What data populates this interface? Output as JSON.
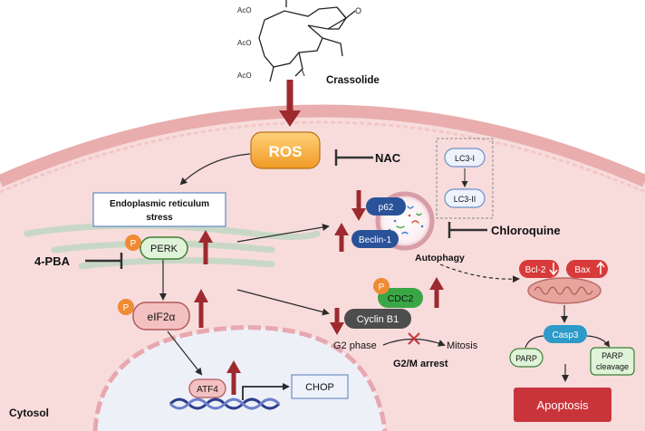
{
  "colors": {
    "cell_fill": "#f8dcdc",
    "membrane": "#e6a9a9",
    "nucleus_fill": "#eef0f8",
    "dark_red": "#9e2a2f",
    "ros_fill": "#f4a93a",
    "perk_fill": "#dff3d8",
    "eif2a_fill": "#f3c1c1",
    "cdc2_fill": "#3aa646",
    "cyclin_fill": "#4d4d4d",
    "bcl2_fill": "#d83a3a",
    "casp3_fill": "#2d9ac8",
    "apoptosis_fill": "#c9343b",
    "p_badge": "#f08a34",
    "blue_pill": "#2a5298"
  },
  "compound": {
    "name": "Crassolide",
    "acetyl_labels": [
      "AcO",
      "AcO",
      "AcO"
    ]
  },
  "ros": {
    "label": "ROS",
    "inhibitor": "NAC"
  },
  "er_stress": {
    "label_line1": "Endoplasmic reticulum",
    "label_line2": "stress"
  },
  "upr": {
    "perk": "PERK",
    "phospho": "P",
    "eif2a": "eIF2α",
    "atf4": "ATF4",
    "chop": "CHOP",
    "inhibitor": "4-PBA"
  },
  "autophagy": {
    "label": "Autophagy",
    "p62": "p62",
    "beclin": "Beclin-1",
    "lc3_1": "LC3-I",
    "lc3_2": "LC3-II",
    "inhibitor": "Chloroquine"
  },
  "cell_cycle": {
    "cdc2": "CDC2",
    "cyclin": "Cyclin B1",
    "g2": "G2 phase",
    "mitosis": "Mitosis",
    "arrest": "G2/M arrest"
  },
  "apoptosis_path": {
    "bcl2": "Bcl-2",
    "bax": "Bax",
    "casp3": "Casp3",
    "parp": "PARP",
    "parp_cleavage_line1": "PARP",
    "parp_cleavage_line2": "cleavage",
    "apoptosis": "Apoptosis"
  },
  "region": {
    "cytosol": "Cytosol"
  }
}
